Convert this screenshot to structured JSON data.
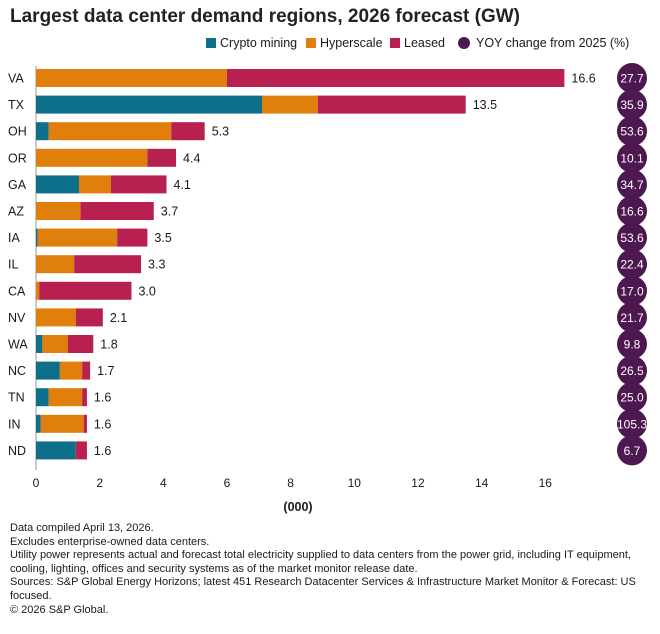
{
  "title": "Largest data center demand regions, 2026 forecast (GW)",
  "colors": {
    "crypto": "#0e6f8a",
    "hyperscale": "#e07f0c",
    "leased": "#b8204f",
    "yoy_circle": "#4d174f",
    "axis": "#999999"
  },
  "legend": [
    {
      "label": "Crypto mining",
      "kind": "swatch",
      "color": "#0e6f8a"
    },
    {
      "label": "Hyperscale",
      "kind": "swatch",
      "color": "#e07f0c"
    },
    {
      "label": "Leased",
      "kind": "swatch",
      "color": "#b8204f"
    },
    {
      "label": "YOY change from 2025 (%)",
      "kind": "dot",
      "color": "#4d174f"
    }
  ],
  "chart_data": {
    "type": "bar",
    "orientation": "horizontal",
    "stacked": true,
    "title": "Largest data center demand regions, 2026 forecast (GW)",
    "xlabel": "(000)",
    "ylabel": "",
    "xlim": [
      0,
      17.5
    ],
    "xticks": [
      0,
      2,
      4,
      6,
      8,
      10,
      12,
      14,
      16
    ],
    "grid": false,
    "legend_position": "top-right",
    "categories": [
      "VA",
      "TX",
      "OH",
      "OR",
      "GA",
      "AZ",
      "IA",
      "IL",
      "CA",
      "NV",
      "WA",
      "NC",
      "TN",
      "IN",
      "ND"
    ],
    "series": [
      {
        "name": "Crypto mining",
        "color": "#0e6f8a",
        "values": [
          0,
          7.1,
          0.4,
          0,
          1.35,
          0,
          0.05,
          0,
          0,
          0,
          0.2,
          0.75,
          0.4,
          0.15,
          1.25
        ]
      },
      {
        "name": "Hyperscale",
        "color": "#e07f0c",
        "values": [
          6.0,
          1.75,
          3.85,
          3.5,
          1.0,
          1.4,
          2.5,
          1.2,
          0.1,
          1.25,
          0.8,
          0.7,
          1.05,
          1.35,
          0
        ]
      },
      {
        "name": "Leased",
        "color": "#b8204f",
        "values": [
          10.6,
          4.65,
          1.05,
          0.9,
          1.75,
          2.3,
          0.95,
          2.1,
          2.9,
          0.85,
          0.8,
          0.25,
          0.15,
          0.1,
          0.35
        ]
      }
    ],
    "totals": [
      "16.6",
      "13.5",
      "5.3",
      "4.4",
      "4.1",
      "3.7",
      "3.5",
      "3.3",
      "3.0",
      "2.1",
      "1.8",
      "1.7",
      "1.6",
      "1.6",
      "1.6"
    ],
    "yoy_change": [
      "27.7",
      "35.9",
      "53.6",
      "10.1",
      "34.7",
      "16.6",
      "53.6",
      "22.4",
      "17.0",
      "21.7",
      "9.8",
      "26.5",
      "25.0",
      "105.3",
      "6.7"
    ]
  },
  "footnotes": [
    "Data compiled April 13, 2026.",
    "Excludes enterprise-owned data centers.",
    "Utility power represents actual and forecast total electricity supplied to data centers from the power grid, including IT equipment, cooling, lighting, offices and security systems as of the market monitor release date.",
    "Sources: S&P Global Energy Horizons; latest 451 Research Datacenter Services & Infrastructure Market Monitor & Forecast: US focused.",
    "© 2026 S&P Global."
  ]
}
